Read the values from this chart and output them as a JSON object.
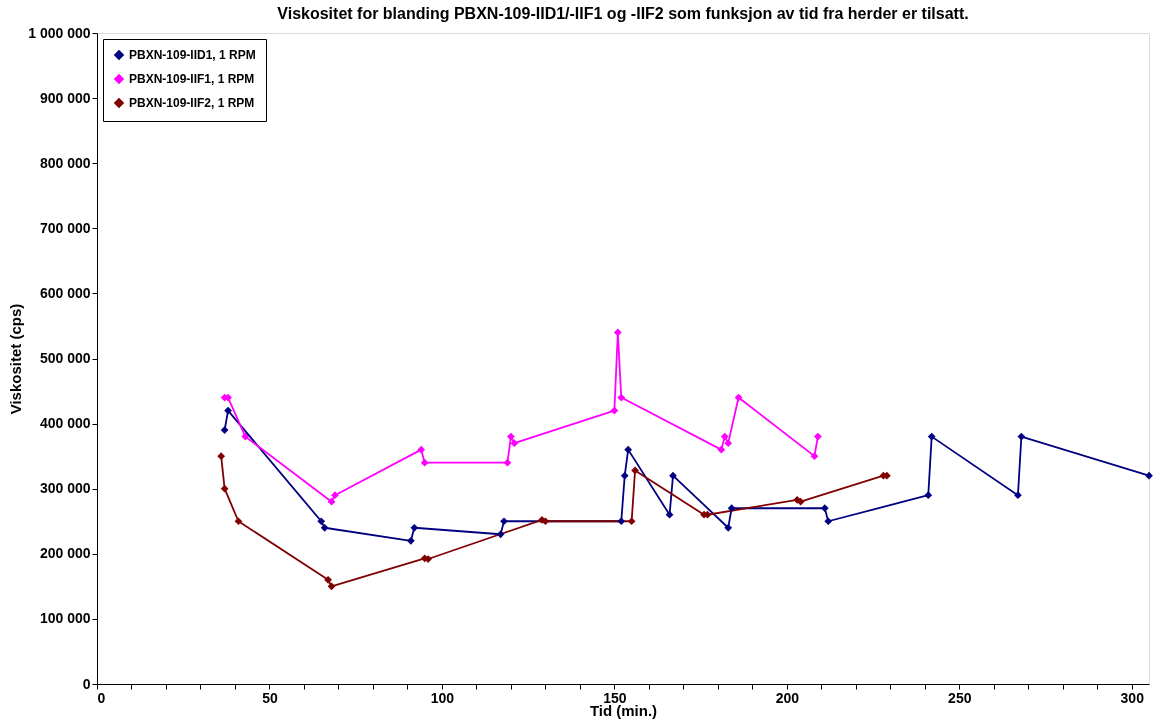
{
  "chart_data": {
    "type": "line",
    "title": "Viskositet  for blanding PBXN-109-IID1/-IIF1 og -IIF2 som funksjon av tid fra herder er tilsatt.",
    "xlabel": "Tid (min.)",
    "ylabel": "Viskositet (cps)",
    "xlim": [
      0,
      305
    ],
    "ylim": [
      0,
      1000000
    ],
    "xticks": [
      0,
      {
        "value": 10,
        "label": null
      },
      {
        "value": 20,
        "label": null
      },
      {
        "value": 30,
        "label": null
      },
      {
        "value": 40,
        "label": null
      },
      50,
      {
        "value": 60,
        "label": null
      },
      {
        "value": 70,
        "label": null
      },
      {
        "value": 80,
        "label": null
      },
      {
        "value": 90,
        "label": null
      },
      100,
      {
        "value": 110,
        "label": null
      },
      {
        "value": 120,
        "label": null
      },
      {
        "value": 130,
        "label": null
      },
      {
        "value": 140,
        "label": null
      },
      150,
      {
        "value": 160,
        "label": null
      },
      {
        "value": 170,
        "label": null
      },
      {
        "value": 180,
        "label": null
      },
      {
        "value": 190,
        "label": null
      },
      200,
      {
        "value": 210,
        "label": null
      },
      {
        "value": 220,
        "label": null
      },
      {
        "value": 230,
        "label": null
      },
      {
        "value": 240,
        "label": null
      },
      250,
      {
        "value": 260,
        "label": null
      },
      {
        "value": 270,
        "label": null
      },
      {
        "value": 280,
        "label": null
      },
      {
        "value": 290,
        "label": null
      },
      300
    ],
    "yticks": [
      0,
      {
        "value": 100000,
        "label": "100 000"
      },
      {
        "value": 200000,
        "label": "200 000"
      },
      {
        "value": 300000,
        "label": "300 000"
      },
      {
        "value": 400000,
        "label": "400 000"
      },
      {
        "value": 500000,
        "label": "500 000"
      },
      {
        "value": 600000,
        "label": "600 000"
      },
      {
        "value": 700000,
        "label": "700 000"
      },
      {
        "value": 800000,
        "label": "800 000"
      },
      {
        "value": 900000,
        "label": "900 000"
      },
      {
        "value": 1000000,
        "label": "1 000 000"
      }
    ],
    "grid": false,
    "legend": "top left",
    "marker": "diamond",
    "line_style": "solid",
    "series": [
      {
        "name": "PBXN-109-IID1, 1 RPM",
        "color": "#000080",
        "x": [
          37,
          38,
          65,
          66,
          91,
          92,
          117,
          118,
          152,
          153,
          154,
          166,
          167,
          183,
          184,
          211,
          212,
          241,
          242,
          267,
          268,
          305
        ],
        "values": [
          390000,
          420000,
          250000,
          240000,
          220000,
          240000,
          230000,
          250000,
          250000,
          320000,
          360000,
          260000,
          320000,
          240000,
          270000,
          270000,
          250000,
          290000,
          380000,
          290000,
          380000,
          320000
        ]
      },
      {
        "name": "PBXN-109-IIF1, 1 RPM",
        "color": "#ff00ff",
        "x": [
          37,
          38,
          43,
          68,
          69,
          94,
          95,
          119,
          120,
          121,
          150,
          151,
          152,
          181,
          182,
          183,
          186,
          208,
          209
        ],
        "values": [
          440000,
          440000,
          380000,
          280000,
          290000,
          360000,
          340000,
          340000,
          380000,
          370000,
          420000,
          540000,
          440000,
          360000,
          380000,
          370000,
          440000,
          350000,
          380000
        ]
      },
      {
        "name": "PBXN-109-IIF2, 1 RPM",
        "color": "#800000",
        "x": [
          36,
          37,
          41,
          67,
          68,
          95,
          96,
          129,
          130,
          155,
          156,
          176,
          177,
          203,
          204,
          228,
          229
        ],
        "values": [
          350000,
          300000,
          250000,
          160000,
          150000,
          193000,
          192000,
          252000,
          250000,
          250000,
          328000,
          260000,
          260000,
          283000,
          280000,
          320000,
          320000
        ]
      }
    ]
  }
}
